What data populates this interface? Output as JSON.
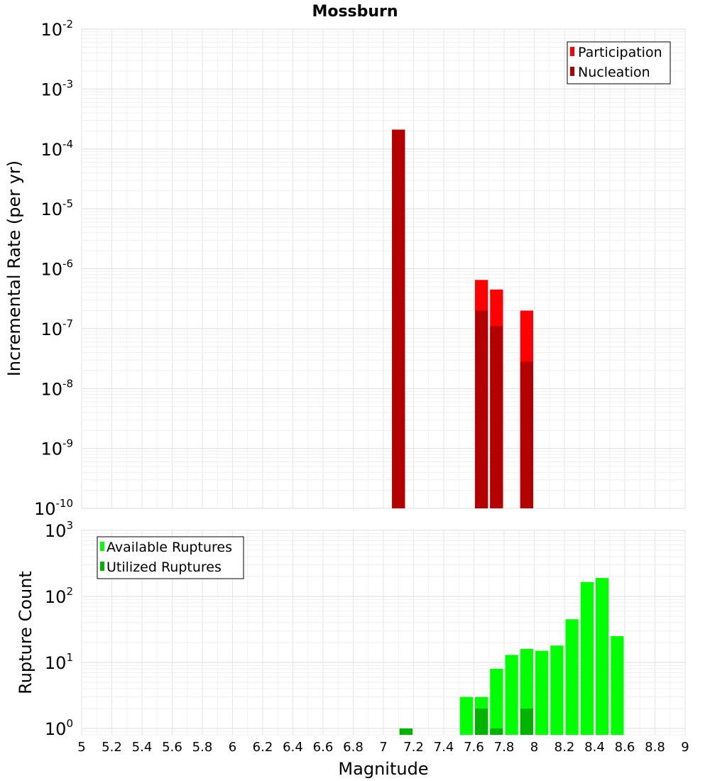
{
  "chart_data": [
    {
      "type": "bar",
      "title": "Mossburn",
      "ylabel": "Incremental Rate (per yr)",
      "xlabel": "",
      "xlim": [
        5,
        9
      ],
      "ylim": [
        1e-10,
        0.01
      ],
      "yscale": "log",
      "grid": true,
      "legend_position": "top-right",
      "bin_width": 0.1,
      "series": [
        {
          "name": "Participation",
          "color": "#ff0000",
          "x": [
            7.1,
            7.65,
            7.75,
            7.95
          ],
          "values": [
            0.00021,
            6.5e-07,
            4.5e-07,
            2e-07
          ]
        },
        {
          "name": "Nucleation",
          "color": "#b30000",
          "x": [
            7.1,
            7.65,
            7.75,
            7.95
          ],
          "values": [
            0.00021,
            2e-07,
            1.1e-07,
            2.8e-08
          ]
        }
      ]
    },
    {
      "type": "bar",
      "title": "",
      "ylabel": "Rupture Count",
      "xlabel": "Magnitude",
      "xlim": [
        5,
        9
      ],
      "ylim": [
        0.8,
        1000
      ],
      "yscale": "log",
      "grid": true,
      "legend_position": "top-left",
      "bin_width": 0.1,
      "series": [
        {
          "name": "Available Ruptures",
          "color": "#00ff00",
          "x": [
            7.15,
            7.55,
            7.65,
            7.75,
            7.85,
            7.95,
            8.05,
            8.15,
            8.25,
            8.35,
            8.45,
            8.55
          ],
          "values": [
            1,
            3,
            3,
            8,
            13,
            16,
            15,
            18,
            45,
            165,
            190,
            25
          ]
        },
        {
          "name": "Utilized Ruptures",
          "color": "#00b300",
          "x": [
            7.15,
            7.65,
            7.75,
            7.95
          ],
          "values": [
            1,
            2,
            1,
            2
          ]
        }
      ]
    }
  ],
  "x_ticks": [
    "5",
    "5.2",
    "5.4",
    "5.6",
    "5.8",
    "6",
    "6.2",
    "6.4",
    "6.6",
    "6.8",
    "7",
    "7.2",
    "7.4",
    "7.6",
    "7.8",
    "8",
    "8.2",
    "8.4",
    "8.6",
    "8.8",
    "9"
  ],
  "top_y_ticks": [
    {
      "base": "10",
      "exp": "-2"
    },
    {
      "base": "10",
      "exp": "-3"
    },
    {
      "base": "10",
      "exp": "-4"
    },
    {
      "base": "10",
      "exp": "-5"
    },
    {
      "base": "10",
      "exp": "-6"
    },
    {
      "base": "10",
      "exp": "-7"
    },
    {
      "base": "10",
      "exp": "-8"
    },
    {
      "base": "10",
      "exp": "-9"
    },
    {
      "base": "10",
      "exp": "-10"
    }
  ],
  "bottom_y_ticks": [
    {
      "base": "10",
      "exp": "3"
    },
    {
      "base": "10",
      "exp": "2"
    },
    {
      "base": "10",
      "exp": "1"
    },
    {
      "base": "10",
      "exp": "0"
    }
  ]
}
